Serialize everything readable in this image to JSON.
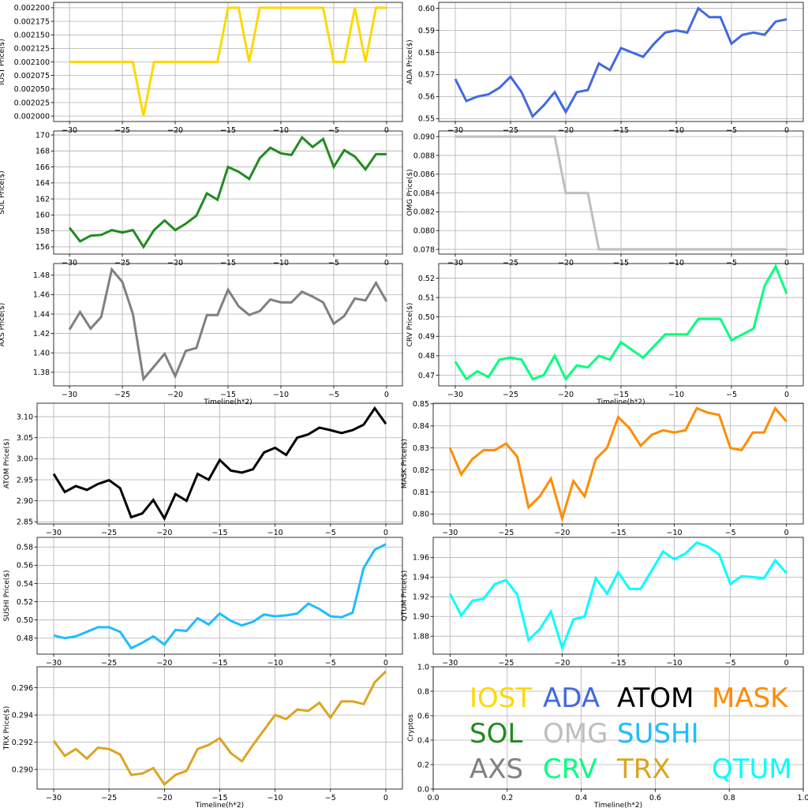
{
  "chart_data": [
    {
      "type": "line",
      "color": "#ffd700",
      "ylabel": "IOST Price($)",
      "xlabel": "",
      "xlim": [
        -31.5,
        1.5
      ],
      "ylim": [
        0.00199,
        0.00221
      ],
      "xticks": [
        -30,
        -25,
        -20,
        -15,
        -10,
        -5,
        0
      ],
      "yticks": [
        0.002,
        0.002025,
        0.00205,
        0.002075,
        0.0021,
        0.002125,
        0.00215,
        0.002175,
        0.0022
      ],
      "ytick_labels": [
        "0.002000",
        "0.002025",
        "0.002050",
        "0.002075",
        "0.002100",
        "0.002125",
        "0.002150",
        "0.002175",
        "0.002200"
      ],
      "x": [
        -30,
        -29,
        -28,
        -27,
        -26,
        -25,
        -24,
        -23,
        -22,
        -21,
        -20,
        -19,
        -18,
        -17,
        -16,
        -15,
        -14,
        -13,
        -12,
        -11,
        -10,
        -9,
        -8,
        -7,
        -6,
        -5,
        -4,
        -3,
        -2,
        -1,
        0
      ],
      "y": [
        0.0021,
        0.0021,
        0.0021,
        0.0021,
        0.0021,
        0.0021,
        0.0021,
        0.002,
        0.0021,
        0.0021,
        0.0021,
        0.0021,
        0.0021,
        0.0021,
        0.0021,
        0.0022,
        0.0022,
        0.0021,
        0.0022,
        0.0022,
        0.0022,
        0.0022,
        0.0022,
        0.0022,
        0.0022,
        0.0021,
        0.0021,
        0.0022,
        0.0021,
        0.0022,
        0.0022
      ]
    },
    {
      "type": "line",
      "color": "#4169e1",
      "ylabel": "ADA Price($)",
      "xlabel": "",
      "xlim": [
        -31.5,
        1.5
      ],
      "ylim": [
        0.5487,
        0.6027
      ],
      "xticks": [
        -30,
        -25,
        -20,
        -15,
        -10,
        -5,
        0
      ],
      "yticks": [
        0.55,
        0.56,
        0.57,
        0.58,
        0.59,
        0.6
      ],
      "ytick_labels": [
        "0.55",
        "0.56",
        "0.57",
        "0.58",
        "0.59",
        "0.60"
      ],
      "x": [
        -30,
        -29,
        -28,
        -27,
        -26,
        -25,
        -24,
        -23,
        -22,
        -21,
        -20,
        -19,
        -18,
        -17,
        -16,
        -15,
        -14,
        -13,
        -12,
        -11,
        -10,
        -9,
        -8,
        -7,
        -6,
        -5,
        -4,
        -3,
        -2,
        -1,
        0
      ],
      "y": [
        0.568,
        0.558,
        0.56,
        0.561,
        0.564,
        0.569,
        0.562,
        0.551,
        0.556,
        0.562,
        0.553,
        0.562,
        0.563,
        0.575,
        0.572,
        0.582,
        0.58,
        0.578,
        0.584,
        0.589,
        0.59,
        0.589,
        0.6,
        0.596,
        0.596,
        0.584,
        0.588,
        0.589,
        0.588,
        0.594,
        0.595
      ]
    },
    {
      "type": "line",
      "color": "#228b22",
      "ylabel": "SOL Price($)",
      "xlabel": "",
      "xlim": [
        -31.5,
        1.5
      ],
      "ylim": [
        155.1,
        170.5
      ],
      "xticks": [
        -30,
        -25,
        -20,
        -15,
        -10,
        -5,
        0
      ],
      "yticks": [
        156,
        158,
        160,
        162,
        164,
        166,
        168,
        170
      ],
      "ytick_labels": [
        "156",
        "158",
        "160",
        "162",
        "164",
        "166",
        "168",
        "170"
      ],
      "x": [
        -30,
        -29,
        -28,
        -27,
        -26,
        -25,
        -24,
        -23,
        -22,
        -21,
        -20,
        -19,
        -18,
        -17,
        -16,
        -15,
        -14,
        -13,
        -12,
        -11,
        -10,
        -9,
        -8,
        -7,
        -6,
        -5,
        -4,
        -3,
        -2,
        -1,
        0
      ],
      "y": [
        158.4,
        156.7,
        157.4,
        157.5,
        158.1,
        157.8,
        158.1,
        156.0,
        158.1,
        159.3,
        158.1,
        158.9,
        159.9,
        162.7,
        161.9,
        166.0,
        165.4,
        164.5,
        167.1,
        168.4,
        167.7,
        167.5,
        169.7,
        168.5,
        169.5,
        166.0,
        168.1,
        167.3,
        165.7,
        167.6,
        167.6
      ]
    },
    {
      "type": "line",
      "color": "#bebebe",
      "ylabel": "OMG Price($)",
      "xlabel": "",
      "xlim": [
        -31.5,
        1.5
      ],
      "ylim": [
        0.0775,
        0.0906
      ],
      "xticks": [
        -30,
        -25,
        -20,
        -15,
        -10,
        -5,
        0
      ],
      "yticks": [
        0.078,
        0.08,
        0.082,
        0.084,
        0.086,
        0.088,
        0.09
      ],
      "ytick_labels": [
        "0.078",
        "0.080",
        "0.082",
        "0.084",
        "0.086",
        "0.088",
        "0.090"
      ],
      "x": [
        -30,
        -29,
        -28,
        -27,
        -26,
        -25,
        -24,
        -23,
        -22,
        -21,
        -20,
        -19,
        -18,
        -17,
        -16,
        -15,
        -14,
        -13,
        -12,
        -11,
        -10,
        -9,
        -8,
        -7,
        -6,
        -5,
        -4,
        -3,
        -2,
        -1,
        0
      ],
      "y": [
        0.09,
        0.09,
        0.09,
        0.09,
        0.09,
        0.09,
        0.09,
        0.09,
        0.09,
        0.09,
        0.084,
        0.084,
        0.084,
        0.078,
        0.078,
        0.078,
        0.078,
        0.078,
        0.078,
        0.078,
        0.078,
        0.078,
        0.078,
        0.078,
        0.078,
        0.078,
        0.078,
        0.078,
        0.078,
        0.078,
        0.078
      ]
    },
    {
      "type": "line",
      "color": "#808080",
      "ylabel": "AXS Price($)",
      "xlabel": "Timeline(h*2)",
      "xlim": [
        -31.5,
        1.5
      ],
      "ylim": [
        1.366,
        1.492
      ],
      "xticks": [
        -30,
        -25,
        -20,
        -15,
        -10,
        -5,
        0
      ],
      "yticks": [
        1.38,
        1.4,
        1.42,
        1.44,
        1.46,
        1.48
      ],
      "ytick_labels": [
        "1.38",
        "1.40",
        "1.42",
        "1.44",
        "1.46",
        "1.48"
      ],
      "x": [
        -30,
        -29,
        -28,
        -27,
        -26,
        -25,
        -24,
        -23,
        -22,
        -21,
        -20,
        -19,
        -18,
        -17,
        -16,
        -15,
        -14,
        -13,
        -12,
        -11,
        -10,
        -9,
        -8,
        -7,
        -6,
        -5,
        -4,
        -3,
        -2,
        -1,
        0
      ],
      "y": [
        1.424,
        1.442,
        1.425,
        1.437,
        1.486,
        1.473,
        1.44,
        1.373,
        1.386,
        1.399,
        1.376,
        1.402,
        1.405,
        1.439,
        1.439,
        1.465,
        1.448,
        1.439,
        1.443,
        1.455,
        1.452,
        1.452,
        1.463,
        1.458,
        1.452,
        1.43,
        1.438,
        1.456,
        1.454,
        1.472,
        1.453
      ]
    },
    {
      "type": "line",
      "color": "#00ff7f",
      "ylabel": "CRV Price($)",
      "xlabel": "Timeline(h*2)",
      "xlim": [
        -31.5,
        1.5
      ],
      "ylim": [
        0.4645,
        0.5275
      ],
      "xticks": [
        -30,
        -25,
        -20,
        -15,
        -10,
        -5,
        0
      ],
      "yticks": [
        0.47,
        0.48,
        0.49,
        0.5,
        0.51,
        0.52
      ],
      "ytick_labels": [
        "0.47",
        "0.48",
        "0.49",
        "0.50",
        "0.51",
        "0.52"
      ],
      "x": [
        -30,
        -29,
        -28,
        -27,
        -26,
        -25,
        -24,
        -23,
        -22,
        -21,
        -20,
        -19,
        -18,
        -17,
        -16,
        -15,
        -14,
        -13,
        -12,
        -11,
        -10,
        -9,
        -8,
        -7,
        -6,
        -5,
        -4,
        -3,
        -2,
        -1,
        0
      ],
      "y": [
        0.477,
        0.468,
        0.472,
        0.469,
        0.478,
        0.479,
        0.478,
        0.468,
        0.47,
        0.48,
        0.468,
        0.475,
        0.474,
        0.48,
        0.478,
        0.487,
        0.483,
        0.479,
        0.485,
        0.491,
        0.491,
        0.491,
        0.499,
        0.499,
        0.499,
        0.488,
        0.491,
        0.494,
        0.516,
        0.526,
        0.512
      ]
    },
    {
      "type": "line",
      "color": "#000000",
      "ylabel": "ATOM Price($)",
      "xlabel": "",
      "xlim": [
        -31.5,
        1.5
      ],
      "ylim": [
        2.845,
        3.132
      ],
      "xticks": [
        -30,
        -25,
        -20,
        -15,
        -10,
        -5,
        0
      ],
      "yticks": [
        2.85,
        2.9,
        2.95,
        3.0,
        3.05,
        3.1
      ],
      "ytick_labels": [
        "2.85",
        "2.90",
        "2.95",
        "3.00",
        "3.05",
        "3.10"
      ],
      "x": [
        -30,
        -29,
        -28,
        -27,
        -26,
        -25,
        -24,
        -23,
        -22,
        -21,
        -20,
        -19,
        -18,
        -17,
        -16,
        -15,
        -14,
        -13,
        -12,
        -11,
        -10,
        -9,
        -8,
        -7,
        -6,
        -5,
        -4,
        -3,
        -2,
        -1,
        0
      ],
      "y": [
        2.964,
        2.921,
        2.935,
        2.926,
        2.94,
        2.949,
        2.93,
        2.861,
        2.87,
        2.902,
        2.858,
        2.916,
        2.9,
        2.964,
        2.95,
        2.997,
        2.972,
        2.967,
        2.975,
        3.015,
        3.026,
        3.009,
        3.05,
        3.058,
        3.074,
        3.068,
        3.061,
        3.068,
        3.081,
        3.12,
        3.083
      ]
    },
    {
      "type": "line",
      "color": "#ff8c00",
      "ylabel": "MASK Price($)",
      "xlabel": "",
      "xlim": [
        -31.5,
        1.5
      ],
      "ylim": [
        0.7955,
        0.8503
      ],
      "xticks": [
        -30,
        -25,
        -20,
        -15,
        -10,
        -5,
        0
      ],
      "yticks": [
        0.8,
        0.81,
        0.82,
        0.83,
        0.84,
        0.85
      ],
      "ytick_labels": [
        "0.80",
        "0.81",
        "0.82",
        "0.83",
        "0.84",
        "0.85"
      ],
      "x": [
        -30,
        -29,
        -28,
        -27,
        -26,
        -25,
        -24,
        -23,
        -22,
        -21,
        -20,
        -19,
        -18,
        -17,
        -16,
        -15,
        -14,
        -13,
        -12,
        -11,
        -10,
        -9,
        -8,
        -7,
        -6,
        -5,
        -4,
        -3,
        -2,
        -1,
        0
      ],
      "y": [
        0.83,
        0.818,
        0.825,
        0.829,
        0.829,
        0.832,
        0.826,
        0.803,
        0.808,
        0.816,
        0.798,
        0.815,
        0.808,
        0.825,
        0.83,
        0.844,
        0.839,
        0.831,
        0.836,
        0.838,
        0.837,
        0.838,
        0.848,
        0.846,
        0.845,
        0.83,
        0.829,
        0.837,
        0.837,
        0.848,
        0.842
      ]
    },
    {
      "type": "line",
      "color": "#1ebdff",
      "ylabel": "SUSHI Price($)",
      "xlabel": "",
      "xlim": [
        -31.5,
        1.5
      ],
      "ylim": [
        0.4625,
        0.5906
      ],
      "xticks": [
        -30,
        -25,
        -20,
        -15,
        -10,
        -5,
        0
      ],
      "yticks": [
        0.48,
        0.5,
        0.52,
        0.54,
        0.56,
        0.58
      ],
      "ytick_labels": [
        "0.48",
        "0.50",
        "0.52",
        "0.54",
        "0.56",
        "0.58"
      ],
      "x": [
        -30,
        -29,
        -28,
        -27,
        -26,
        -25,
        -24,
        -23,
        -22,
        -21,
        -20,
        -19,
        -18,
        -17,
        -16,
        -15,
        -14,
        -13,
        -12,
        -11,
        -10,
        -9,
        -8,
        -7,
        -6,
        -5,
        -4,
        -3,
        -2,
        -1,
        0
      ],
      "y": [
        0.483,
        0.48,
        0.482,
        0.487,
        0.492,
        0.492,
        0.487,
        0.469,
        0.475,
        0.482,
        0.473,
        0.489,
        0.488,
        0.502,
        0.495,
        0.507,
        0.499,
        0.494,
        0.498,
        0.506,
        0.504,
        0.505,
        0.507,
        0.518,
        0.512,
        0.504,
        0.503,
        0.508,
        0.557,
        0.577,
        0.583
      ]
    },
    {
      "type": "line",
      "color": "#00ffff",
      "ylabel": "QTUM Price($)",
      "xlabel": "",
      "xlim": [
        -31.5,
        1.5
      ],
      "ylim": [
        1.8617,
        1.9804
      ],
      "xticks": [
        -30,
        -25,
        -20,
        -15,
        -10,
        -5,
        0
      ],
      "yticks": [
        1.88,
        1.9,
        1.92,
        1.94,
        1.96
      ],
      "ytick_labels": [
        "1.88",
        "1.90",
        "1.92",
        "1.94",
        "1.96"
      ],
      "x": [
        -30,
        -29,
        -28,
        -27,
        -26,
        -25,
        -24,
        -23,
        -22,
        -21,
        -20,
        -19,
        -18,
        -17,
        -16,
        -15,
        -14,
        -13,
        -12,
        -11,
        -10,
        -9,
        -8,
        -7,
        -6,
        -5,
        -4,
        -3,
        -2,
        -1,
        0
      ],
      "y": [
        1.923,
        1.901,
        1.916,
        1.918,
        1.933,
        1.937,
        1.922,
        1.876,
        1.887,
        1.905,
        1.868,
        1.897,
        1.9,
        1.939,
        1.923,
        1.945,
        1.928,
        1.928,
        1.947,
        1.966,
        1.958,
        1.964,
        1.975,
        1.971,
        1.963,
        1.933,
        1.941,
        1.94,
        1.939,
        1.957,
        1.944
      ]
    },
    {
      "type": "line",
      "color": "#daa520",
      "ylabel": "TRX Price($)",
      "xlabel": "Timeline(h*2)",
      "xlim": [
        -31.5,
        1.5
      ],
      "ylim": [
        0.28856,
        0.29754
      ],
      "xticks": [
        -30,
        -25,
        -20,
        -15,
        -10,
        -5,
        0
      ],
      "yticks": [
        0.29,
        0.292,
        0.294,
        0.296
      ],
      "ytick_labels": [
        "0.290",
        "0.292",
        "0.294",
        "0.296"
      ],
      "x": [
        -30,
        -29,
        -28,
        -27,
        -26,
        -25,
        -24,
        -23,
        -22,
        -21,
        -20,
        -19,
        -18,
        -17,
        -16,
        -15,
        -14,
        -13,
        -12,
        -11,
        -10,
        -9,
        -8,
        -7,
        -6,
        -5,
        -4,
        -3,
        -2,
        -1,
        0
      ],
      "y": [
        0.2921,
        0.291,
        0.2915,
        0.2908,
        0.2916,
        0.2915,
        0.2911,
        0.2896,
        0.2897,
        0.2901,
        0.2889,
        0.2896,
        0.2899,
        0.2915,
        0.2918,
        0.2923,
        0.2912,
        0.2906,
        0.2918,
        0.2929,
        0.294,
        0.2937,
        0.2944,
        0.2943,
        0.2949,
        0.2938,
        0.295,
        0.295,
        0.2948,
        0.2964,
        0.2972
      ]
    },
    {
      "type": "legend_panel",
      "ylabel": "Cryptos",
      "xlabel": "Timeline(h*2)",
      "xlim": [
        0,
        1
      ],
      "ylim": [
        0,
        1
      ],
      "xticks": [
        0.0,
        0.2,
        0.4,
        0.6,
        0.8,
        1.0
      ],
      "xtick_labels": [
        "0.0",
        "0.2",
        "0.4",
        "0.6",
        "0.8",
        "1.0"
      ],
      "yticks": [
        0.0,
        0.2,
        0.4,
        0.6,
        0.8,
        1.0
      ],
      "ytick_labels": [
        "0.0",
        "0.2",
        "0.4",
        "0.6",
        "0.8",
        "1.0"
      ],
      "legend": [
        {
          "name": "IOST",
          "color": "#ffd700"
        },
        {
          "name": "ADA",
          "color": "#4169e1"
        },
        {
          "name": "ATOM",
          "color": "#000000"
        },
        {
          "name": "MASK",
          "color": "#ff8c00"
        },
        {
          "name": "SOL",
          "color": "#228b22"
        },
        {
          "name": "OMG",
          "color": "#bebebe"
        },
        {
          "name": "SUSHI",
          "color": "#1ebdff"
        },
        {
          "name": "AXS",
          "color": "#808080"
        },
        {
          "name": "CRV",
          "color": "#00ff7f"
        },
        {
          "name": "TRX",
          "color": "#daa520"
        },
        {
          "name": "QTUM",
          "color": "#00ffff"
        }
      ]
    }
  ]
}
